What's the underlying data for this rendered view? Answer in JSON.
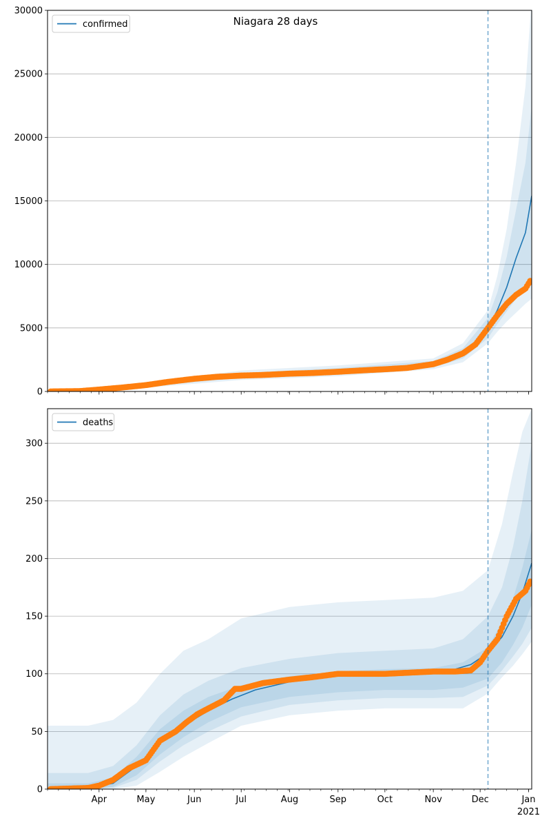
{
  "figure": {
    "suptitle": "Niagara 28 days"
  },
  "colors": {
    "model": "#1f77b4",
    "observed": "#ff7f0e",
    "grid": "#b0b0b0",
    "vline": "#1f77b4"
  },
  "chart_data": [
    {
      "type": "line",
      "legend": [
        "confirmed"
      ],
      "legend_position": "top-left",
      "grid": "y",
      "ylim": [
        0,
        30000
      ],
      "yticks": [
        0,
        5000,
        10000,
        15000,
        20000,
        25000,
        30000
      ],
      "xlim": [
        "2020-02-28",
        "2021-01-03"
      ],
      "x_tick_labels": [
        "Apr",
        "May",
        "Jun",
        "Jul",
        "Aug",
        "Sep",
        "Oct",
        "Nov",
        "Dec",
        "Jan"
      ],
      "x_year_label": "2021",
      "forecast_start": "2020-12-06",
      "series": [
        {
          "name": "confirmed",
          "kind": "model-median",
          "x": [
            "2020-02-28",
            "2020-03-20",
            "2020-04-10",
            "2020-05-01",
            "2020-05-20",
            "2020-06-10",
            "2020-07-01",
            "2020-08-01",
            "2020-09-01",
            "2020-10-01",
            "2020-10-20",
            "2020-11-01",
            "2020-11-10",
            "2020-11-20",
            "2020-11-28",
            "2020-12-06",
            "2020-12-12",
            "2020-12-18",
            "2020-12-24",
            "2020-12-30",
            "2021-01-03"
          ],
          "y": [
            10,
            40,
            200,
            500,
            900,
            1150,
            1250,
            1450,
            1600,
            1800,
            1950,
            2150,
            2500,
            3000,
            3800,
            5000,
            6400,
            8200,
            10500,
            12500,
            15400
          ]
        },
        {
          "name": "uncertainty",
          "kind": "bands",
          "x": [
            "2020-02-28",
            "2020-05-01",
            "2020-07-01",
            "2020-09-01",
            "2020-11-01",
            "2020-11-20",
            "2020-12-06",
            "2020-12-12",
            "2020-12-18",
            "2020-12-24",
            "2020-12-30",
            "2021-01-03"
          ],
          "bands": [
            {
              "low": [
                0,
                400,
                1050,
                1350,
                1900,
                2600,
                4200,
                5300,
                6300,
                7300,
                8200,
                8800
              ],
              "high": [
                20,
                600,
                1450,
                1850,
                2400,
                3400,
                5800,
                7800,
                10600,
                14300,
                18000,
                22500
              ]
            },
            {
              "low": [
                0,
                300,
                900,
                1200,
                1750,
                2300,
                3800,
                4700,
                5500,
                6200,
                6900,
                7300
              ],
              "high": [
                40,
                700,
                1650,
                2050,
                2600,
                3800,
                6400,
                9100,
                12800,
                18000,
                24000,
                31000
              ]
            }
          ]
        },
        {
          "name": "observed",
          "kind": "points",
          "x": [
            "2020-03-01",
            "2020-03-20",
            "2020-04-01",
            "2020-04-15",
            "2020-05-01",
            "2020-05-15",
            "2020-06-01",
            "2020-06-15",
            "2020-07-01",
            "2020-07-15",
            "2020-08-01",
            "2020-08-15",
            "2020-09-01",
            "2020-09-15",
            "2020-10-01",
            "2020-10-15",
            "2020-11-01",
            "2020-11-10",
            "2020-11-20",
            "2020-11-28",
            "2020-12-06",
            "2020-12-12",
            "2020-12-18",
            "2020-12-24",
            "2020-12-30",
            "2021-01-02"
          ],
          "y": [
            0,
            30,
            150,
            300,
            500,
            750,
            1000,
            1150,
            1250,
            1300,
            1400,
            1450,
            1550,
            1650,
            1750,
            1850,
            2150,
            2500,
            3000,
            3700,
            5000,
            6000,
            6900,
            7600,
            8100,
            8700
          ]
        }
      ]
    },
    {
      "type": "line",
      "legend": [
        "deaths"
      ],
      "legend_position": "top-left",
      "grid": "y",
      "ylim": [
        0,
        330
      ],
      "yticks": [
        0,
        50,
        100,
        150,
        200,
        250,
        300
      ],
      "xlim": [
        "2020-02-28",
        "2021-01-03"
      ],
      "x_tick_labels": [
        "Apr",
        "May",
        "Jun",
        "Jul",
        "Aug",
        "Sep",
        "Oct",
        "Nov",
        "Dec",
        "Jan"
      ],
      "x_year_label": "2021",
      "forecast_start": "2020-12-06",
      "series": [
        {
          "name": "deaths",
          "kind": "model-median",
          "x": [
            "2020-02-28",
            "2020-03-25",
            "2020-04-10",
            "2020-04-25",
            "2020-05-10",
            "2020-05-25",
            "2020-06-10",
            "2020-06-25",
            "2020-07-10",
            "2020-08-01",
            "2020-08-20",
            "2020-09-05",
            "2020-10-01",
            "2020-10-20",
            "2020-11-01",
            "2020-11-15",
            "2020-11-25",
            "2020-12-06",
            "2020-12-15",
            "2020-12-22",
            "2020-12-28",
            "2021-01-03"
          ],
          "y": [
            0,
            1,
            5,
            20,
            40,
            55,
            68,
            78,
            86,
            93,
            97,
            100,
            100,
            101,
            102,
            104,
            108,
            118,
            132,
            150,
            170,
            196
          ]
        },
        {
          "name": "uncertainty",
          "kind": "bands",
          "x": [
            "2020-02-28",
            "2020-03-25",
            "2020-04-10",
            "2020-04-25",
            "2020-05-10",
            "2020-05-25",
            "2020-06-10",
            "2020-07-01",
            "2020-08-01",
            "2020-09-01",
            "2020-10-01",
            "2020-11-01",
            "2020-11-20",
            "2020-12-06",
            "2020-12-15",
            "2020-12-22",
            "2020-12-28",
            "2021-01-03"
          ],
          "bands": [
            {
              "low": [
                0,
                0,
                2,
                12,
                30,
                45,
                58,
                71,
                80,
                84,
                86,
                86,
                88,
                96,
                110,
                125,
                140,
                160
              ],
              "high": [
                5,
                5,
                10,
                28,
                52,
                68,
                80,
                90,
                98,
                102,
                104,
                105,
                110,
                123,
                145,
                165,
                192,
                225
              ]
            },
            {
              "low": [
                0,
                0,
                1,
                8,
                24,
                38,
                50,
                63,
                73,
                77,
                79,
                79,
                80,
                90,
                103,
                115,
                126,
                140
              ],
              "high": [
                14,
                14,
                20,
                38,
                64,
                82,
                94,
                105,
                113,
                118,
                120,
                122,
                130,
                150,
                175,
                210,
                250,
                300
              ]
            },
            {
              "low": [
                0,
                0,
                0,
                3,
                15,
                28,
                40,
                55,
                64,
                68,
                70,
                70,
                70,
                83,
                97,
                107,
                117,
                128
              ],
              "high": [
                55,
                55,
                60,
                75,
                100,
                120,
                130,
                148,
                158,
                162,
                164,
                166,
                172,
                190,
                230,
                275,
                310,
                330
              ]
            }
          ]
        },
        {
          "name": "observed",
          "kind": "points",
          "x": [
            "2020-03-01",
            "2020-03-25",
            "2020-04-01",
            "2020-04-10",
            "2020-04-20",
            "2020-05-01",
            "2020-05-10",
            "2020-05-20",
            "2020-05-27",
            "2020-06-03",
            "2020-06-10",
            "2020-06-20",
            "2020-06-27",
            "2020-07-01",
            "2020-07-15",
            "2020-08-01",
            "2020-08-15",
            "2020-09-01",
            "2020-10-01",
            "2020-11-01",
            "2020-11-15",
            "2020-11-25",
            "2020-12-01",
            "2020-12-06",
            "2020-12-12",
            "2020-12-18",
            "2020-12-24",
            "2020-12-30",
            "2021-01-02"
          ],
          "y": [
            0,
            1,
            3,
            8,
            18,
            25,
            42,
            50,
            58,
            65,
            70,
            77,
            87,
            87,
            92,
            95,
            97,
            100,
            100,
            102,
            102,
            103,
            110,
            120,
            130,
            150,
            165,
            172,
            180
          ]
        }
      ]
    }
  ]
}
